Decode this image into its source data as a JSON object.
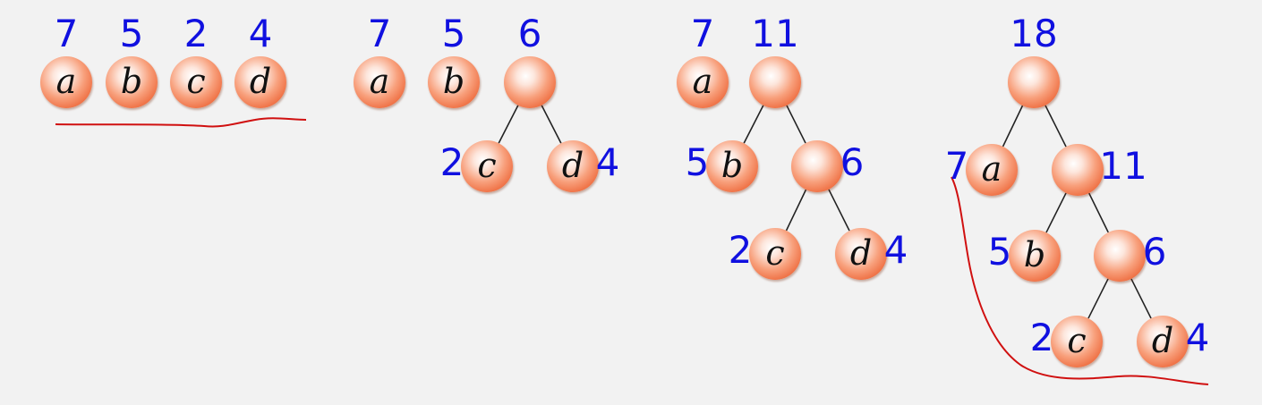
{
  "diagram": {
    "stages": [
      {
        "id": "s1",
        "nodes": [
          {
            "id": "a",
            "letter": "a",
            "weight": "7"
          },
          {
            "id": "b",
            "letter": "b",
            "weight": "5"
          },
          {
            "id": "c",
            "letter": "c",
            "weight": "2"
          },
          {
            "id": "d",
            "letter": "d",
            "weight": "4"
          }
        ],
        "edges": []
      },
      {
        "id": "s2",
        "nodes": [
          {
            "id": "a",
            "letter": "a",
            "weight": "7"
          },
          {
            "id": "b",
            "letter": "b",
            "weight": "5"
          },
          {
            "id": "n6",
            "letter": "",
            "weight": "6"
          },
          {
            "id": "c",
            "letter": "c",
            "weight": "2"
          },
          {
            "id": "d",
            "letter": "d",
            "weight": "4"
          }
        ],
        "edges": [
          [
            "n6",
            "c"
          ],
          [
            "n6",
            "d"
          ]
        ]
      },
      {
        "id": "s3",
        "nodes": [
          {
            "id": "a",
            "letter": "a",
            "weight": "7"
          },
          {
            "id": "n11",
            "letter": "",
            "weight": "11"
          },
          {
            "id": "b",
            "letter": "b",
            "weight": "5"
          },
          {
            "id": "n6",
            "letter": "",
            "weight": "6"
          },
          {
            "id": "c",
            "letter": "c",
            "weight": "2"
          },
          {
            "id": "d",
            "letter": "d",
            "weight": "4"
          }
        ],
        "edges": [
          [
            "n11",
            "b"
          ],
          [
            "n11",
            "n6"
          ],
          [
            "n6",
            "c"
          ],
          [
            "n6",
            "d"
          ]
        ]
      },
      {
        "id": "s4",
        "nodes": [
          {
            "id": "n18",
            "letter": "",
            "weight": "18"
          },
          {
            "id": "a",
            "letter": "a",
            "weight": "7"
          },
          {
            "id": "n11",
            "letter": "",
            "weight": "11"
          },
          {
            "id": "b",
            "letter": "b",
            "weight": "5"
          },
          {
            "id": "n6",
            "letter": "",
            "weight": "6"
          },
          {
            "id": "c",
            "letter": "c",
            "weight": "2"
          },
          {
            "id": "d",
            "letter": "d",
            "weight": "4"
          }
        ],
        "edges": [
          [
            "n18",
            "a"
          ],
          [
            "n18",
            "n11"
          ],
          [
            "n11",
            "b"
          ],
          [
            "n11",
            "n6"
          ],
          [
            "n6",
            "c"
          ],
          [
            "n6",
            "d"
          ]
        ]
      }
    ],
    "colors": {
      "weight_text": "#1010e0",
      "edge": "#222222",
      "annotation": "#d01010",
      "background": "#f2f2f2"
    }
  }
}
